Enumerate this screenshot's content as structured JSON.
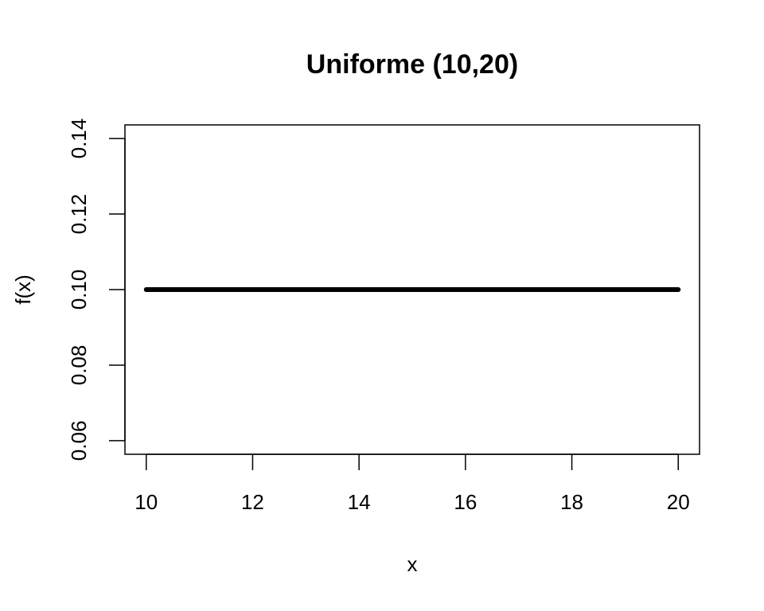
{
  "chart_data": {
    "type": "line",
    "title": "Uniforme (10,20)",
    "xlabel": "x",
    "ylabel": "f(x)",
    "xlim": [
      9.6,
      20.4
    ],
    "ylim": [
      0.0564,
      0.1436
    ],
    "x_ticks": [
      10,
      12,
      14,
      16,
      18,
      20
    ],
    "x_tick_labels": [
      "10",
      "12",
      "14",
      "16",
      "18",
      "20"
    ],
    "y_ticks": [
      0.06,
      0.08,
      0.1,
      0.12,
      0.14
    ],
    "y_tick_labels": [
      "0.06",
      "0.08",
      "0.10",
      "0.12",
      "0.14"
    ],
    "grid": false,
    "legend": "none",
    "series": [
      {
        "x": [
          10,
          20
        ],
        "y": [
          0.1,
          0.1
        ],
        "color": "#000000"
      }
    ]
  }
}
